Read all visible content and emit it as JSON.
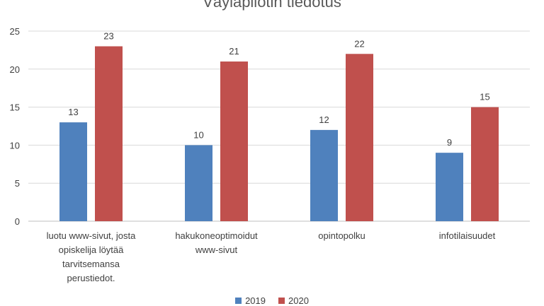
{
  "chart_data": {
    "type": "bar",
    "title": "Väyläpilotin tiedotus",
    "categories": [
      [
        "luotu www-sivut, josta",
        "opiskelija löytää",
        "tarvitsemansa",
        "perustiedot."
      ],
      [
        "hakukoneoptimoidut",
        "www-sivut"
      ],
      [
        "opintopolku"
      ],
      [
        "infotilaisuudet"
      ]
    ],
    "series": [
      {
        "name": "2019",
        "values": [
          13,
          10,
          12,
          9
        ],
        "color": "#4f81bd"
      },
      {
        "name": "2020",
        "values": [
          23,
          21,
          22,
          15
        ],
        "color": "#c0504d"
      }
    ],
    "yticks": [
      0,
      5,
      10,
      15,
      20,
      25
    ],
    "ylim": [
      0,
      25
    ],
    "grid": true,
    "legend_position": "bottom"
  }
}
